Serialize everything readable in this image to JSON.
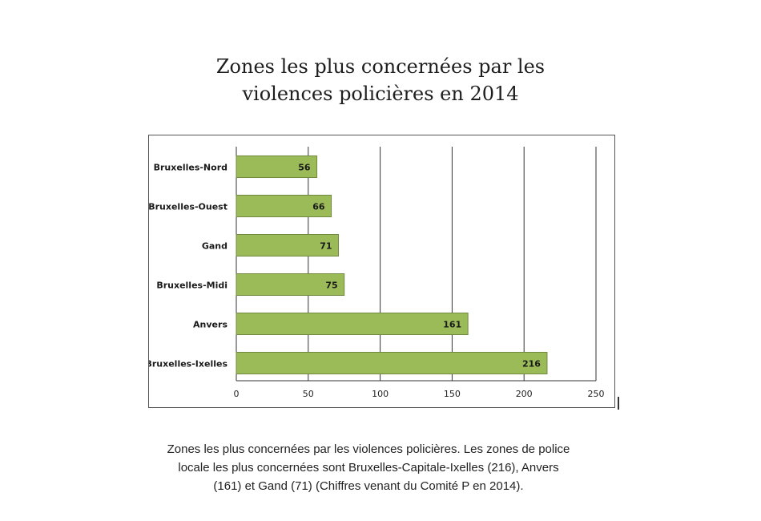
{
  "title_lines": [
    "Zones les plus concernées par les",
    "violences policières en 2014"
  ],
  "caption_lines": [
    "Zones les plus concernées par les violences policières. Les zones de police",
    "locale les plus concernées sont Bruxelles-Capitale-Ixelles (216), Anvers",
    "(161) et Gand (71) (Chiffres venant du Comité P en 2014)."
  ],
  "chart_data": {
    "type": "bar",
    "orientation": "horizontal",
    "categories": [
      "Bruxelles-Nord",
      "Bruxelles-Ouest",
      "Gand",
      "Bruxelles-Midi",
      "Anvers",
      "Bruxelles-Ixelles"
    ],
    "values": [
      56,
      66,
      71,
      75,
      161,
      216
    ],
    "data_labels": [
      "56",
      "66",
      "71",
      "75",
      "161",
      "216"
    ],
    "x_ticks": [
      "0",
      "50",
      "100",
      "150",
      "200",
      "250"
    ],
    "xlim": [
      0,
      250
    ],
    "grid": true,
    "legend": "none",
    "colors": {
      "bar_fill": "#9bbb59",
      "bar_stroke": "#71893f",
      "grid": "#333333"
    }
  }
}
